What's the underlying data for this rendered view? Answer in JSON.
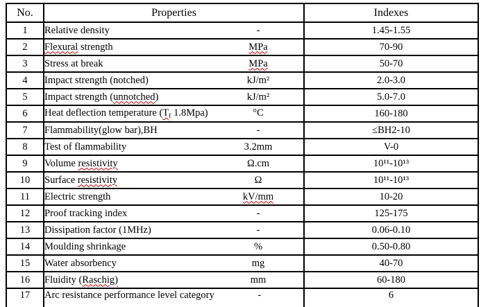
{
  "colors": {
    "text": "#000000",
    "border": "#000000",
    "background": "#ffffff",
    "spellcheck_underline": "#c00000"
  },
  "table": {
    "headers": {
      "no": "No.",
      "properties": "Properties",
      "indexes": "Indexes"
    },
    "rows": [
      {
        "no": "1",
        "property": [
          {
            "t": "Relative density"
          }
        ],
        "unit": [
          {
            "t": "-"
          }
        ],
        "index": [
          {
            "t": "1.45-1.55"
          }
        ]
      },
      {
        "no": "2",
        "property": [
          {
            "t": "Flexural",
            "wavy": true
          },
          {
            "t": " strength"
          }
        ],
        "unit": [
          {
            "t": "MPa",
            "wavy": true
          }
        ],
        "index": [
          {
            "t": "70-90"
          }
        ]
      },
      {
        "no": "3",
        "property": [
          {
            "t": "Stress at break"
          }
        ],
        "unit": [
          {
            "t": "MPa",
            "wavy": true
          }
        ],
        "index": [
          {
            "t": "50-70"
          }
        ]
      },
      {
        "no": "4",
        "property": [
          {
            "t": "Impact strength (notched)"
          }
        ],
        "unit": [
          {
            "t": "kJ/m²"
          }
        ],
        "index": [
          {
            "t": "2.0-3.0"
          }
        ]
      },
      {
        "no": "5",
        "property": [
          {
            "t": "Impact strength ("
          },
          {
            "t": "unnotched",
            "wavy": true
          },
          {
            "t": ")"
          }
        ],
        "unit": [
          {
            "t": "kJ/m²"
          }
        ],
        "index": [
          {
            "t": "5.0-7.0"
          }
        ]
      },
      {
        "no": "6",
        "property": [
          {
            "t": "Heat deflection temperature ("
          },
          {
            "t": "T",
            "wavy": true
          },
          {
            "t": "f",
            "sub": true,
            "wavy": true
          },
          {
            "t": " 1.8Mpa)"
          }
        ],
        "unit": [
          {
            "t": "°C"
          }
        ],
        "index": [
          {
            "t": "160-180"
          }
        ]
      },
      {
        "no": "7",
        "property": [
          {
            "t": "Flammability(glow bar),BH"
          }
        ],
        "unit": [
          {
            "t": "-"
          }
        ],
        "index": [
          {
            "t": "≤BH2-10"
          }
        ]
      },
      {
        "no": "8",
        "property": [
          {
            "t": "Test of flammability"
          }
        ],
        "unit": [
          {
            "t": "3.2mm"
          }
        ],
        "index": [
          {
            "t": "V-0"
          }
        ]
      },
      {
        "no": "9",
        "property": [
          {
            "t": "Volume "
          },
          {
            "t": "resistivity",
            "wavy": true
          }
        ],
        "unit": [
          {
            "t": "Ω.cm"
          }
        ],
        "index": [
          {
            "t": "10¹¹-10¹³"
          }
        ]
      },
      {
        "no": "10",
        "property": [
          {
            "t": "Surface "
          },
          {
            "t": "resistivity",
            "wavy": true
          }
        ],
        "unit": [
          {
            "t": "Ω"
          }
        ],
        "index": [
          {
            "t": "10¹¹-10¹³"
          }
        ]
      },
      {
        "no": "11",
        "property": [
          {
            "t": "Electric strength"
          }
        ],
        "unit": [
          {
            "t": "kV/mm",
            "wavy": true
          }
        ],
        "index": [
          {
            "t": "10-20"
          }
        ]
      },
      {
        "no": "12",
        "property": [
          {
            "t": "Proof tracking index"
          }
        ],
        "unit": [
          {
            "t": "-"
          }
        ],
        "index": [
          {
            "t": "125-175"
          }
        ]
      },
      {
        "no": "13",
        "property": [
          {
            "t": "Dissipation factor (1MHz)"
          }
        ],
        "unit": [
          {
            "t": "-"
          }
        ],
        "index": [
          {
            "t": "0.06-0.10"
          }
        ]
      },
      {
        "no": "14",
        "property": [
          {
            "t": "Moulding shrinkage"
          }
        ],
        "unit": [
          {
            "t": "%"
          }
        ],
        "index": [
          {
            "t": "0.50-0.80"
          }
        ]
      },
      {
        "no": "15",
        "property": [
          {
            "t": "Water absorbency"
          }
        ],
        "unit": [
          {
            "t": "mg"
          }
        ],
        "index": [
          {
            "t": "40-70"
          }
        ]
      },
      {
        "no": "16",
        "property": [
          {
            "t": "Fluidity ("
          },
          {
            "t": "Raschig)",
            "wavy": true
          }
        ],
        "unit": [
          {
            "t": "mm"
          }
        ],
        "index": [
          {
            "t": "60-180"
          }
        ]
      },
      {
        "no": "17",
        "property": [
          {
            "t": "Arc resistance performance level category"
          }
        ],
        "unit": [
          {
            "t": "-"
          }
        ],
        "index": [
          {
            "t": "6"
          }
        ]
      }
    ]
  }
}
